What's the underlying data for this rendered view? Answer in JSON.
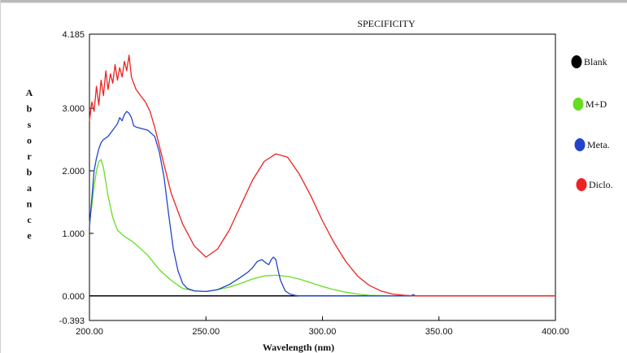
{
  "chart_data": {
    "type": "line",
    "title": "SPECIFICITY",
    "xlabel": "Wavelength (nm)",
    "ylabel": "Absorbance",
    "xlim": [
      200,
      400
    ],
    "ylim": [
      -0.393,
      4.185
    ],
    "x_ticks": [
      "200.00",
      "250.00",
      "300.00",
      "350.00",
      "400.00"
    ],
    "y_ticks": [
      "4.185",
      "3.000",
      "2.000",
      "1.000",
      "0.000",
      "-0.393"
    ],
    "legend_placement": "right",
    "series": [
      {
        "name": "Blank",
        "color": "#000000",
        "x": [
          200,
          250,
          300,
          350,
          400
        ],
        "y": [
          0,
          0,
          0,
          0,
          0
        ]
      },
      {
        "name": "M+D",
        "color": "#66dd22",
        "x": [
          200,
          201,
          202,
          203,
          204,
          205,
          206,
          208,
          210,
          212,
          215,
          218,
          220,
          225,
          230,
          235,
          240,
          245,
          250,
          255,
          260,
          265,
          270,
          275,
          280,
          285,
          290,
          295,
          300,
          305,
          310,
          315,
          320,
          325,
          330,
          340,
          360,
          380,
          400
        ],
        "y": [
          1.15,
          1.45,
          1.75,
          2.0,
          2.15,
          2.18,
          2.05,
          1.6,
          1.25,
          1.05,
          0.95,
          0.88,
          0.82,
          0.65,
          0.42,
          0.25,
          0.12,
          0.08,
          0.07,
          0.1,
          0.14,
          0.2,
          0.27,
          0.32,
          0.33,
          0.31,
          0.27,
          0.21,
          0.15,
          0.1,
          0.06,
          0.03,
          0.01,
          0.005,
          0.0,
          0.0,
          0.0,
          0.0,
          0.0
        ]
      },
      {
        "name": "Meta.",
        "color": "#2244cc",
        "x": [
          200,
          201,
          202,
          203,
          204,
          205,
          206,
          208,
          210,
          212,
          213,
          214,
          215,
          216,
          217,
          218,
          219,
          220,
          222,
          225,
          228,
          230,
          232,
          234,
          236,
          238,
          240,
          242,
          245,
          250,
          255,
          260,
          265,
          268,
          270,
          272,
          274,
          276,
          277,
          278,
          279,
          280,
          281,
          282,
          284,
          286,
          288,
          290,
          300,
          320,
          338,
          339,
          340,
          341
        ],
        "y": [
          1.1,
          1.55,
          2.0,
          2.2,
          2.35,
          2.45,
          2.5,
          2.55,
          2.65,
          2.75,
          2.85,
          2.8,
          2.9,
          2.95,
          2.92,
          2.85,
          2.72,
          2.7,
          2.68,
          2.65,
          2.55,
          2.3,
          1.9,
          1.3,
          0.75,
          0.4,
          0.2,
          0.12,
          0.08,
          0.07,
          0.1,
          0.18,
          0.3,
          0.38,
          0.45,
          0.55,
          0.58,
          0.52,
          0.5,
          0.58,
          0.62,
          0.58,
          0.4,
          0.25,
          0.08,
          0.03,
          0.01,
          0.0,
          0.0,
          0.0,
          0.0,
          0.02,
          0.0,
          0.0
        ]
      },
      {
        "name": "Diclo.",
        "color": "#ee2222",
        "x": [
          200,
          201,
          202,
          203,
          204,
          205,
          206,
          207,
          208,
          209,
          210,
          211,
          212,
          213,
          214,
          215,
          216,
          217,
          218,
          219,
          220,
          222,
          224,
          226,
          228,
          230,
          235,
          240,
          245,
          250,
          255,
          260,
          265,
          270,
          275,
          280,
          285,
          290,
          295,
          300,
          305,
          310,
          315,
          320,
          325,
          330,
          335,
          340,
          350,
          400
        ],
        "y": [
          2.8,
          3.1,
          2.95,
          3.35,
          3.05,
          3.45,
          3.2,
          3.6,
          3.3,
          3.55,
          3.4,
          3.7,
          3.45,
          3.65,
          3.5,
          3.75,
          3.6,
          3.85,
          3.5,
          3.4,
          3.3,
          3.2,
          3.1,
          2.95,
          2.7,
          2.4,
          1.65,
          1.15,
          0.8,
          0.62,
          0.75,
          1.05,
          1.45,
          1.85,
          2.15,
          2.27,
          2.22,
          1.95,
          1.6,
          1.2,
          0.85,
          0.55,
          0.32,
          0.17,
          0.08,
          0.03,
          0.01,
          0.0,
          0.0,
          0.0
        ]
      }
    ]
  }
}
